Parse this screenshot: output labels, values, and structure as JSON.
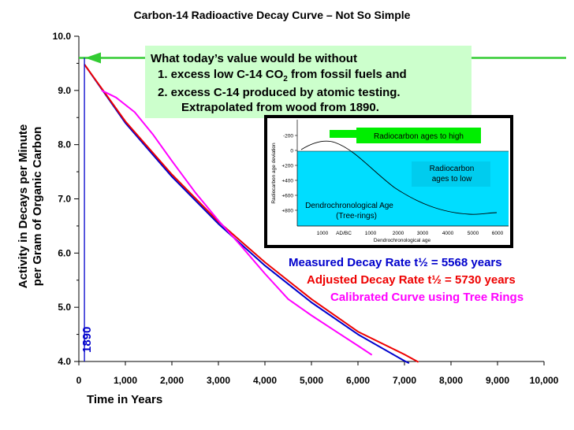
{
  "chart_data": {
    "type": "line",
    "title": "Carbon-14 Radioactive Decay Curve – Not So Simple",
    "xlabel": "Time in Years",
    "ylabel_line1": "Activity in Decays per Minute",
    "ylabel_line2": "per Gram of Organic Carbon",
    "xlim": [
      0,
      10000
    ],
    "ylim": [
      4.0,
      10.0
    ],
    "x_ticks": [
      "0",
      "1,000",
      "2,000",
      "3,000",
      "4,000",
      "5,000",
      "6,000",
      "7,000",
      "8,000",
      "9,000",
      "10,000"
    ],
    "y_ticks": [
      "4.0",
      "5.0",
      "6.0",
      "7.0",
      "8.0",
      "9.0",
      "10.0"
    ],
    "grid": false,
    "series": [
      {
        "name": "Measured Decay Rate  t½ = 5568 years",
        "color": "#0000cc",
        "x": [
          120,
          1000,
          2000,
          3000,
          4000,
          5000,
          6000,
          7000,
          7100
        ],
        "y": [
          9.48,
          8.4,
          7.41,
          6.54,
          5.77,
          5.09,
          4.5,
          4.01,
          3.97
        ]
      },
      {
        "name": "Adjusted Decay Rate  t½ = 5730 years",
        "color": "#ee0000",
        "x": [
          120,
          1000,
          2000,
          3000,
          4000,
          5000,
          6000,
          7000,
          7300
        ],
        "y": [
          9.48,
          8.43,
          7.45,
          6.58,
          5.83,
          5.15,
          4.55,
          4.13,
          3.99
        ]
      },
      {
        "name": "Calibrated Curve using Tree Rings",
        "color": "#ff00ff",
        "x": [
          490,
          800,
          1200,
          1600,
          2000,
          2500,
          3000,
          3500,
          4000,
          4500,
          5000,
          5500,
          6000,
          6300
        ],
        "y": [
          9.0,
          8.87,
          8.6,
          8.18,
          7.7,
          7.12,
          6.6,
          6.12,
          5.62,
          5.15,
          4.85,
          4.57,
          4.29,
          4.12
        ]
      }
    ],
    "marker_1890": {
      "label": "1890",
      "x": 120,
      "color": "#0000cc"
    },
    "reference_line": {
      "y": 9.6,
      "color": "#33cc33"
    },
    "annotation": {
      "line1": "What today’s value would be without",
      "line2": "1. excess low C-14 CO",
      "line2_sub": "2",
      "line2_end": " from fossil fuels and",
      "line3": "2. excess C-14 produced by atomic testing.",
      "line4": "Extrapolated from wood from 1890.",
      "box_color": "#ccffcc"
    },
    "inset": {
      "ylabel": "Radiocarbon age deviation",
      "xlabel": "Dendrochronological age",
      "y_ticks": [
        "-200",
        "0",
        "+200",
        "+400",
        "+600",
        "+800"
      ],
      "x_ticks": [
        "1000",
        "AD/BC",
        "1000",
        "2000",
        "3000",
        "4000",
        "5000",
        "6000"
      ],
      "tag_high": "Radiocarbon ages to high",
      "tag_low_1": "Radiocarbon",
      "tag_low_2": "ages to low",
      "dendro_1": "Dendrochronological Age",
      "dendro_2": "(Tree-rings)"
    }
  }
}
